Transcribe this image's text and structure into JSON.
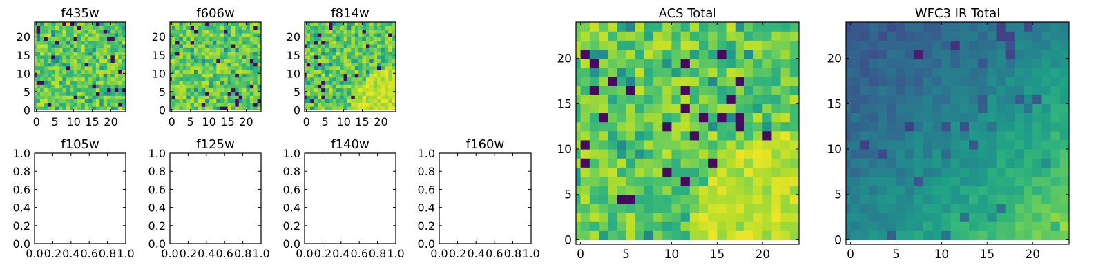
{
  "colormap": {
    "name": "viridis",
    "stops": [
      "#440154",
      "#482878",
      "#3e4989",
      "#31688e",
      "#26828e",
      "#1f9e89",
      "#35b779",
      "#6ece58",
      "#b5de2b",
      "#fde725"
    ]
  },
  "chart_data": [
    {
      "type": "heatmap",
      "title": "f435w",
      "grid_size": 25,
      "xticks": [
        "0",
        "5",
        "10",
        "15",
        "20"
      ],
      "yticks": [
        "0",
        "5",
        "10",
        "15",
        "20"
      ],
      "style": "noise",
      "value_range": [
        0,
        1
      ],
      "tick_values": [
        0,
        5,
        10,
        15,
        20
      ]
    },
    {
      "type": "heatmap",
      "title": "f606w",
      "grid_size": 25,
      "xticks": [
        "0",
        "5",
        "10",
        "15",
        "20"
      ],
      "yticks": [
        "0",
        "5",
        "10",
        "15",
        "20"
      ],
      "style": "noise",
      "value_range": [
        0,
        1
      ],
      "tick_values": [
        0,
        5,
        10,
        15,
        20
      ]
    },
    {
      "type": "heatmap",
      "title": "f814w",
      "grid_size": 25,
      "xticks": [
        "0",
        "5",
        "10",
        "15",
        "20"
      ],
      "yticks": [
        "0",
        "5",
        "10",
        "15",
        "20"
      ],
      "style": "noise-bright-corner",
      "value_range": [
        0,
        1
      ],
      "tick_values": [
        0,
        5,
        10,
        15,
        20
      ]
    },
    {
      "type": "empty",
      "title": "f105w",
      "xticks": [
        "0.0",
        "0.2",
        "0.4",
        "0.6",
        "0.8",
        "1.0"
      ],
      "yticks": [
        "0.0",
        "0.2",
        "0.4",
        "0.6",
        "0.8",
        "1.0"
      ],
      "xlim": [
        0,
        1
      ],
      "ylim": [
        0,
        1
      ]
    },
    {
      "type": "empty",
      "title": "f125w",
      "xticks": [
        "0.0",
        "0.2",
        "0.4",
        "0.6",
        "0.8",
        "1.0"
      ],
      "yticks": [
        "0.0",
        "0.2",
        "0.4",
        "0.6",
        "0.8",
        "1.0"
      ],
      "xlim": [
        0,
        1
      ],
      "ylim": [
        0,
        1
      ]
    },
    {
      "type": "empty",
      "title": "f140w",
      "xticks": [
        "0.0",
        "0.2",
        "0.4",
        "0.6",
        "0.8",
        "1.0"
      ],
      "yticks": [
        "0.0",
        "0.2",
        "0.4",
        "0.6",
        "0.8",
        "1.0"
      ],
      "xlim": [
        0,
        1
      ],
      "ylim": [
        0,
        1
      ]
    },
    {
      "type": "empty",
      "title": "f160w",
      "xticks": [
        "0.0",
        "0.2",
        "0.4",
        "0.6",
        "0.8",
        "1.0"
      ],
      "yticks": [
        "0.0",
        "0.2",
        "0.4",
        "0.6",
        "0.8",
        "1.0"
      ],
      "xlim": [
        0,
        1
      ],
      "ylim": [
        0,
        1
      ]
    },
    {
      "type": "heatmap",
      "title": "ACS Total",
      "grid_size": 25,
      "xticks": [
        "0",
        "5",
        "10",
        "15",
        "20"
      ],
      "yticks": [
        "0",
        "5",
        "10",
        "15",
        "20"
      ],
      "style": "noise-bright-corner",
      "value_range": [
        0,
        1
      ],
      "tick_values": [
        0,
        5,
        10,
        15,
        20
      ]
    },
    {
      "type": "heatmap",
      "title": "WFC3 IR Total",
      "grid_size": 25,
      "xticks": [
        "0",
        "5",
        "10",
        "15",
        "20"
      ],
      "yticks": [
        "0",
        "5",
        "10",
        "15",
        "20"
      ],
      "style": "smooth-gradient",
      "value_range": [
        0,
        1
      ],
      "tick_values": [
        0,
        5,
        10,
        15,
        20
      ]
    }
  ]
}
